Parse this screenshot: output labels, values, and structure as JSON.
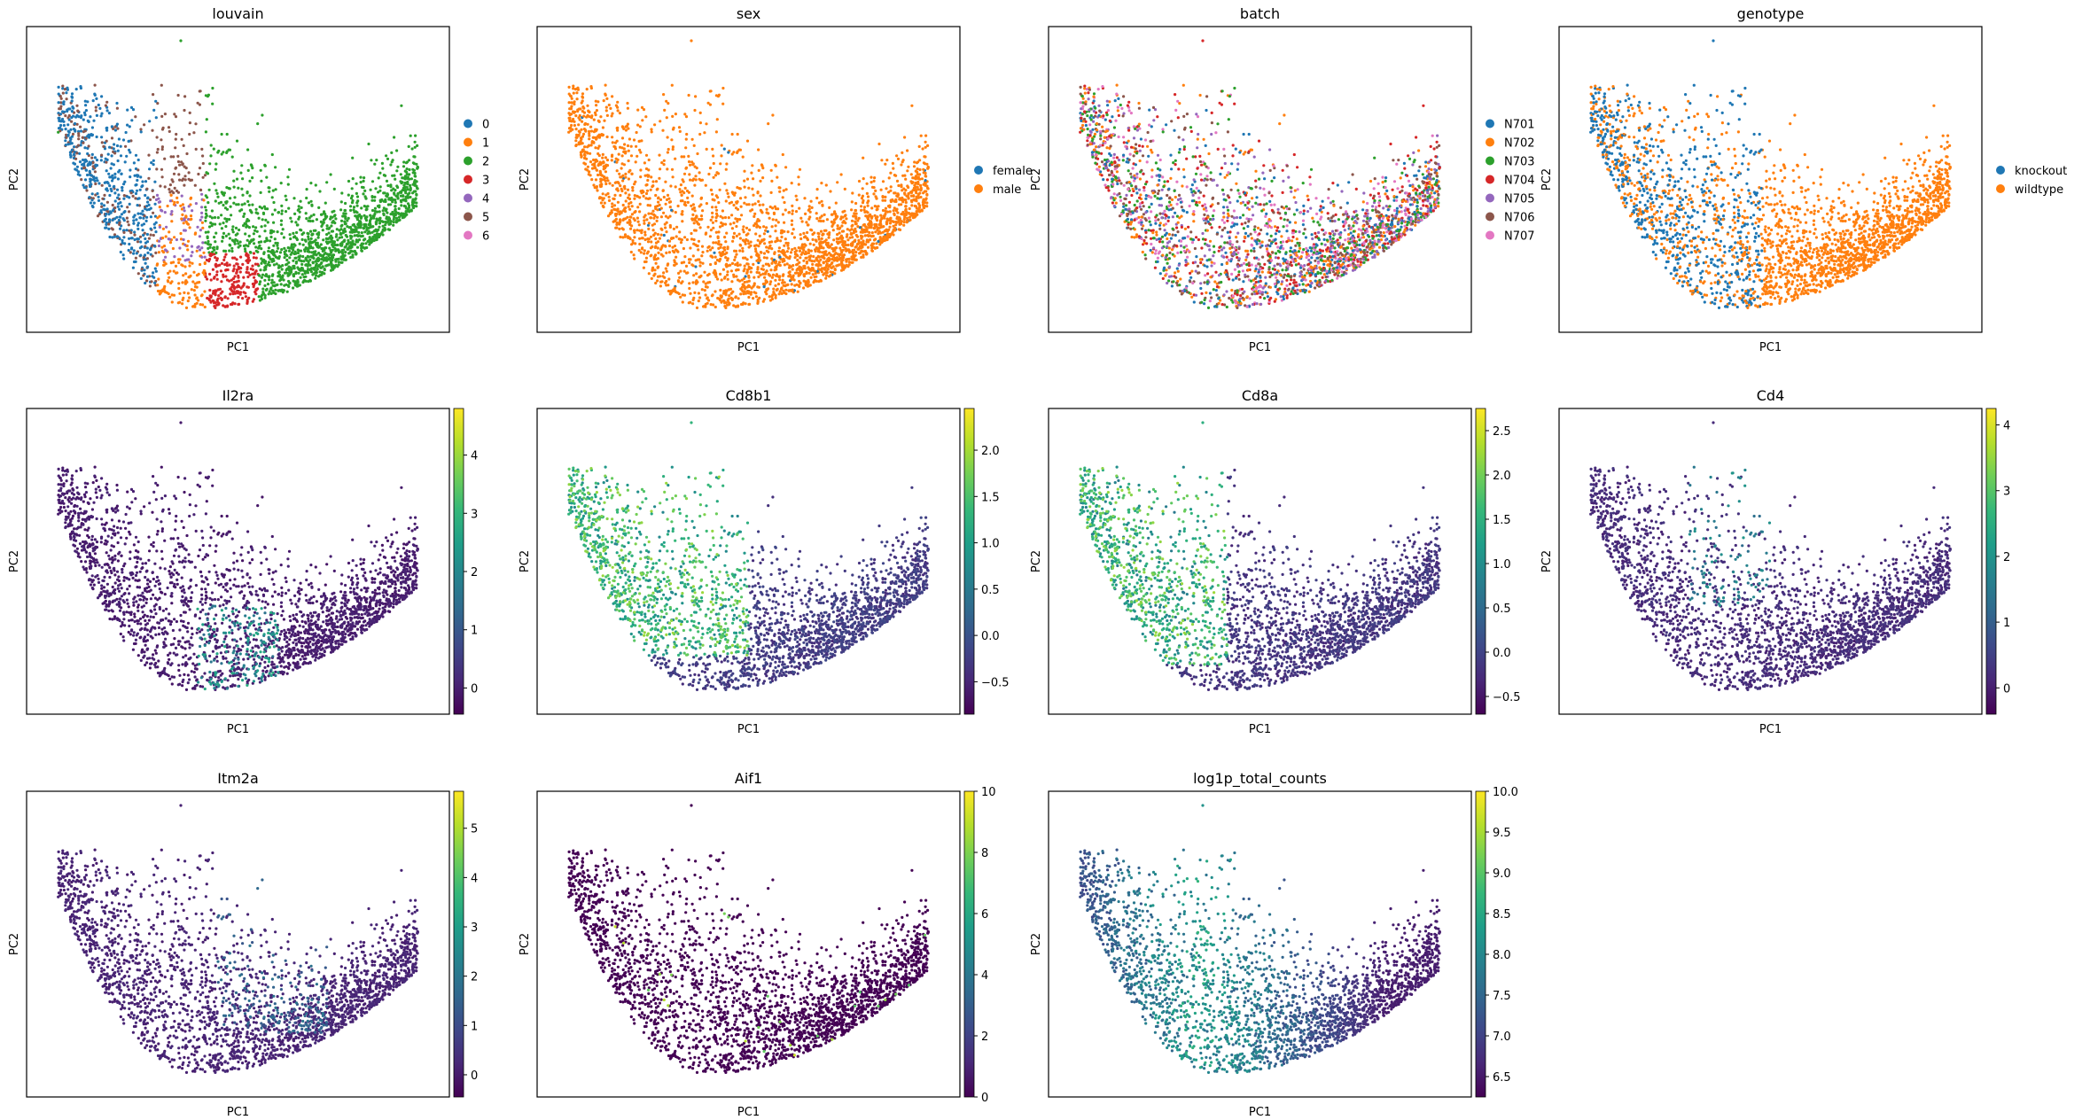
{
  "figure": {
    "x_axis_label": "PC1",
    "y_axis_label": "PC2"
  },
  "chart_data": [
    {
      "type": "scatter",
      "title": "louvain",
      "xlabel": "PC1",
      "ylabel": "PC2",
      "color_mode": "categorical",
      "legend_placement": "right",
      "categories": [
        {
          "name": "0",
          "color": "#1f77b4"
        },
        {
          "name": "1",
          "color": "#ff7f0e"
        },
        {
          "name": "2",
          "color": "#2ca02c"
        },
        {
          "name": "3",
          "color": "#d62728"
        },
        {
          "name": "4",
          "color": "#9467bd"
        },
        {
          "name": "5",
          "color": "#8c564b"
        },
        {
          "name": "6",
          "color": "#e377c2"
        }
      ],
      "grid": false
    },
    {
      "type": "scatter",
      "title": "sex",
      "xlabel": "PC1",
      "ylabel": "PC2",
      "color_mode": "categorical",
      "legend_placement": "right",
      "categories": [
        {
          "name": "female",
          "color": "#1f77b4"
        },
        {
          "name": "male",
          "color": "#ff7f0e"
        }
      ],
      "grid": false
    },
    {
      "type": "scatter",
      "title": "batch",
      "xlabel": "PC1",
      "ylabel": "PC2",
      "color_mode": "categorical",
      "legend_placement": "right",
      "categories": [
        {
          "name": "N701",
          "color": "#1f77b4"
        },
        {
          "name": "N702",
          "color": "#ff7f0e"
        },
        {
          "name": "N703",
          "color": "#2ca02c"
        },
        {
          "name": "N704",
          "color": "#d62728"
        },
        {
          "name": "N705",
          "color": "#9467bd"
        },
        {
          "name": "N706",
          "color": "#8c564b"
        },
        {
          "name": "N707",
          "color": "#e377c2"
        }
      ],
      "grid": false
    },
    {
      "type": "scatter",
      "title": "genotype",
      "xlabel": "PC1",
      "ylabel": "PC2",
      "color_mode": "categorical",
      "legend_placement": "right",
      "categories": [
        {
          "name": "knockout",
          "color": "#1f77b4"
        },
        {
          "name": "wildtype",
          "color": "#ff7f0e"
        }
      ],
      "grid": false
    },
    {
      "type": "scatter",
      "title": "Il2ra",
      "xlabel": "PC1",
      "ylabel": "PC2",
      "color_mode": "continuous",
      "colormap": "viridis",
      "colorbar": {
        "min": -0.45,
        "max": 4.8,
        "ticks": [
          "0",
          "1",
          "2",
          "3",
          "4"
        ],
        "tick_values": [
          0,
          1,
          2,
          3,
          4
        ]
      },
      "grid": false
    },
    {
      "type": "scatter",
      "title": "Cd8b1",
      "xlabel": "PC1",
      "ylabel": "PC2",
      "color_mode": "continuous",
      "colormap": "viridis",
      "colorbar": {
        "min": -0.85,
        "max": 2.45,
        "ticks": [
          "−0.5",
          "0.0",
          "0.5",
          "1.0",
          "1.5",
          "2.0"
        ],
        "tick_values": [
          -0.5,
          0,
          0.5,
          1,
          1.5,
          2
        ]
      },
      "grid": false
    },
    {
      "type": "scatter",
      "title": "Cd8a",
      "xlabel": "PC1",
      "ylabel": "PC2",
      "color_mode": "continuous",
      "colormap": "viridis",
      "colorbar": {
        "min": -0.7,
        "max": 2.75,
        "ticks": [
          "−0.5",
          "0.0",
          "0.5",
          "1.0",
          "1.5",
          "2.0",
          "2.5"
        ],
        "tick_values": [
          -0.5,
          0,
          0.5,
          1,
          1.5,
          2,
          2.5
        ]
      },
      "grid": false
    },
    {
      "type": "scatter",
      "title": "Cd4",
      "xlabel": "PC1",
      "ylabel": "PC2",
      "color_mode": "continuous",
      "colormap": "viridis",
      "colorbar": {
        "min": -0.4,
        "max": 4.25,
        "ticks": [
          "0",
          "1",
          "2",
          "3",
          "4"
        ],
        "tick_values": [
          0,
          1,
          2,
          3,
          4
        ]
      },
      "grid": false
    },
    {
      "type": "scatter",
      "title": "Itm2a",
      "xlabel": "PC1",
      "ylabel": "PC2",
      "color_mode": "continuous",
      "colormap": "viridis",
      "colorbar": {
        "min": -0.45,
        "max": 5.75,
        "ticks": [
          "0",
          "1",
          "2",
          "3",
          "4",
          "5"
        ],
        "tick_values": [
          0,
          1,
          2,
          3,
          4,
          5
        ]
      },
      "grid": false
    },
    {
      "type": "scatter",
      "title": "Aif1",
      "xlabel": "PC1",
      "ylabel": "PC2",
      "color_mode": "continuous",
      "colormap": "viridis",
      "colorbar": {
        "min": 0,
        "max": 10,
        "ticks": [
          "0",
          "2",
          "4",
          "6",
          "8",
          "10"
        ],
        "tick_values": [
          0,
          2,
          4,
          6,
          8,
          10
        ]
      },
      "grid": false
    },
    {
      "type": "scatter",
      "title": "log1p_total_counts",
      "xlabel": "PC1",
      "ylabel": "PC2",
      "color_mode": "continuous",
      "colormap": "viridis",
      "colorbar": {
        "min": 6.25,
        "max": 10.0,
        "ticks": [
          "6.5",
          "7.0",
          "7.5",
          "8.0",
          "8.5",
          "9.0",
          "9.5",
          "10.0"
        ],
        "tick_values": [
          6.5,
          7.0,
          7.5,
          8.0,
          8.5,
          9.0,
          9.5,
          10.0
        ]
      },
      "grid": false
    }
  ],
  "colors": {
    "viridis": [
      "#440154",
      "#482878",
      "#3e4989",
      "#31688e",
      "#26828e",
      "#1f9e89",
      "#35b779",
      "#6ece58",
      "#b5de2b",
      "#fde725"
    ]
  }
}
